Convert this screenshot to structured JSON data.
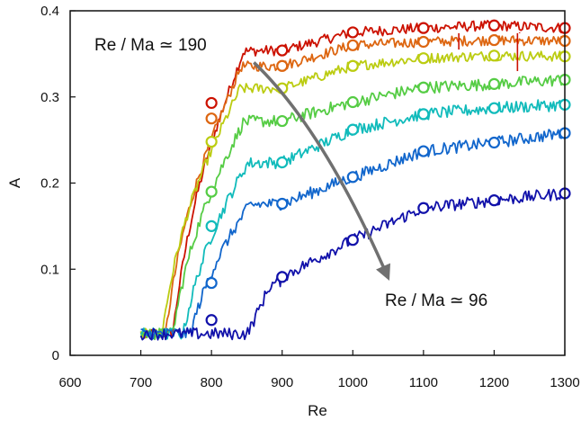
{
  "chart_data": {
    "type": "line",
    "title": "",
    "xlabel": "Re",
    "ylabel": "A",
    "xlim": [
      600,
      1300
    ],
    "ylim": [
      0,
      0.4
    ],
    "xticks": [
      600,
      700,
      800,
      900,
      1000,
      1100,
      1200,
      1300
    ],
    "yticks": [
      0,
      0.1,
      0.2,
      0.3,
      0.4
    ],
    "ytick_labels": [
      "0",
      "0.1",
      "0.2",
      "0.3",
      "0.4"
    ],
    "grid": false,
    "annotations": [
      {
        "text": "Re / Ma ≃ 190",
        "x": 640,
        "y": 0.36
      },
      {
        "text": "Re / Ma ≃ 96",
        "x": 1040,
        "y": 0.06
      }
    ],
    "arrow": {
      "from": [
        860,
        0.34
      ],
      "to": [
        1050,
        0.09
      ],
      "color": "#707070"
    },
    "series": [
      {
        "color": "#cc1100",
        "onset": 745,
        "sat": 0.385,
        "k": 130,
        "noise": 0.006,
        "markers": [
          [
            800,
            0.293
          ],
          [
            900,
            0.354
          ],
          [
            1000,
            0.375
          ],
          [
            1100,
            0.38
          ],
          [
            1200,
            0.383
          ],
          [
            1300,
            0.38
          ]
        ]
      },
      {
        "color": "#dd6611",
        "onset": 735,
        "sat": 0.375,
        "k": 140,
        "noise": 0.006,
        "markers": [
          [
            800,
            0.275
          ],
          [
            900,
            0.336
          ],
          [
            1000,
            0.36
          ],
          [
            1100,
            0.364
          ],
          [
            1200,
            0.366
          ],
          [
            1300,
            0.365
          ]
        ]
      },
      {
        "color": "#bbcc11",
        "onset": 730,
        "sat": 0.36,
        "k": 150,
        "noise": 0.006,
        "markers": [
          [
            800,
            0.248
          ],
          [
            900,
            0.31
          ],
          [
            1000,
            0.336
          ],
          [
            1100,
            0.345
          ],
          [
            1200,
            0.348
          ],
          [
            1300,
            0.347
          ]
        ]
      },
      {
        "color": "#55cc44",
        "onset": 745,
        "sat": 0.33,
        "k": 200,
        "noise": 0.007,
        "markers": [
          [
            800,
            0.19
          ],
          [
            900,
            0.272
          ],
          [
            1000,
            0.294
          ],
          [
            1100,
            0.311
          ],
          [
            1200,
            0.315
          ],
          [
            1300,
            0.32
          ]
        ]
      },
      {
        "color": "#11bbbb",
        "onset": 760,
        "sat": 0.3,
        "k": 230,
        "noise": 0.007,
        "markers": [
          [
            800,
            0.15
          ],
          [
            900,
            0.224
          ],
          [
            1000,
            0.262
          ],
          [
            1100,
            0.28
          ],
          [
            1200,
            0.287
          ],
          [
            1300,
            0.291
          ]
        ]
      },
      {
        "color": "#1166cc",
        "onset": 770,
        "sat": 0.27,
        "k": 280,
        "noise": 0.007,
        "markers": [
          [
            800,
            0.084
          ],
          [
            900,
            0.176
          ],
          [
            1000,
            0.207
          ],
          [
            1100,
            0.237
          ],
          [
            1200,
            0.247
          ],
          [
            1300,
            0.258
          ]
        ]
      },
      {
        "color": "#1111aa",
        "onset": 850,
        "sat": 0.2,
        "k": 240,
        "noise": 0.007,
        "markers": [
          [
            800,
            0.041
          ],
          [
            900,
            0.091
          ],
          [
            1000,
            0.134
          ],
          [
            1100,
            0.171
          ],
          [
            1200,
            0.18
          ],
          [
            1300,
            0.188
          ]
        ]
      }
    ]
  }
}
